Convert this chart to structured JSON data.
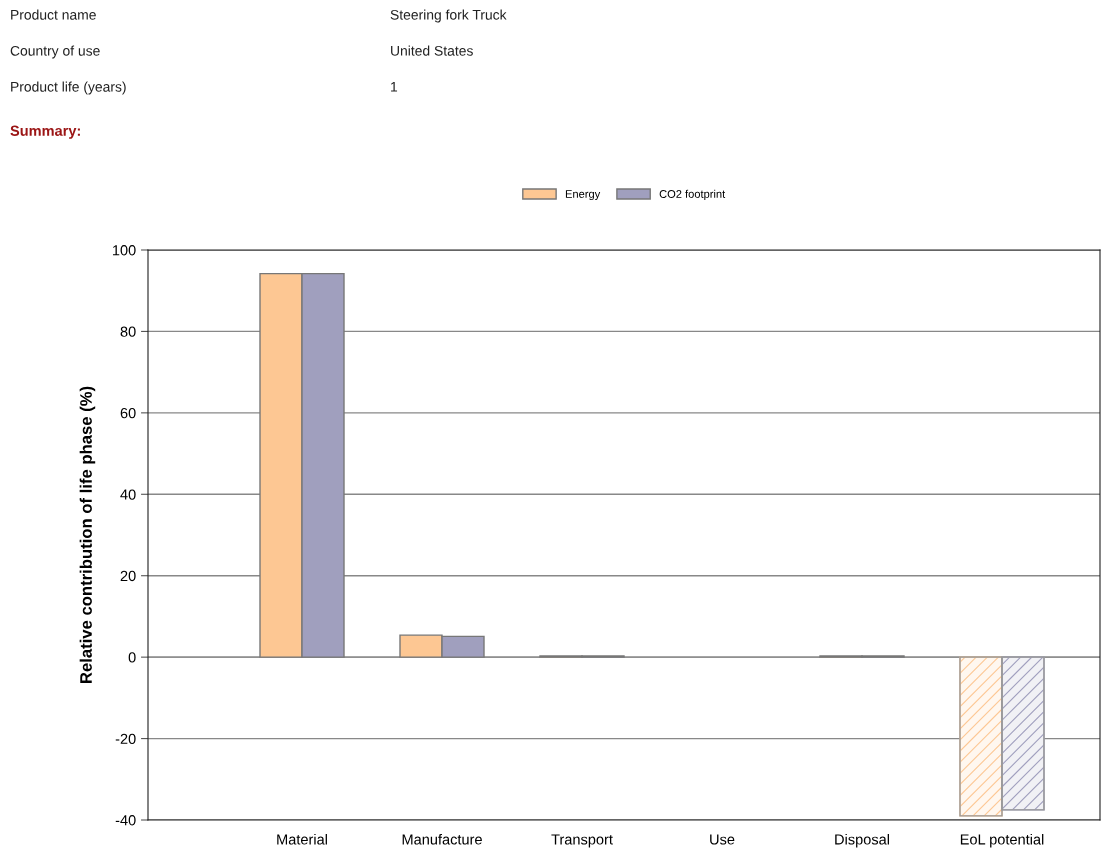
{
  "chart_data": {
    "type": "bar",
    "ylabel": "Relative contribution of life phase (%)",
    "annotations": [
      "Product name",
      "Steering fork Truck",
      "Country of use",
      "United States",
      "Product life (years)",
      "1",
      "Summary:"
    ],
    "categories": [
      "Material",
      "Manufacture",
      "Transport",
      "Use",
      "Disposal",
      "EoL potential"
    ],
    "series": [
      {
        "name": "Energy",
        "color": "#fdc793",
        "values": [
          94.2,
          5.4,
          0.3,
          null,
          0.3,
          -39
        ]
      },
      {
        "name": "CO2 footprint",
        "color": "#a09fbe",
        "values": [
          94.2,
          5.1,
          0.3,
          null,
          0.3,
          -37.5
        ]
      }
    ],
    "ylim": [
      -40,
      100
    ],
    "yticks": [
      -40,
      -20,
      0,
      20,
      40,
      60,
      80,
      100
    ],
    "grid": "y",
    "legend": "top"
  }
}
